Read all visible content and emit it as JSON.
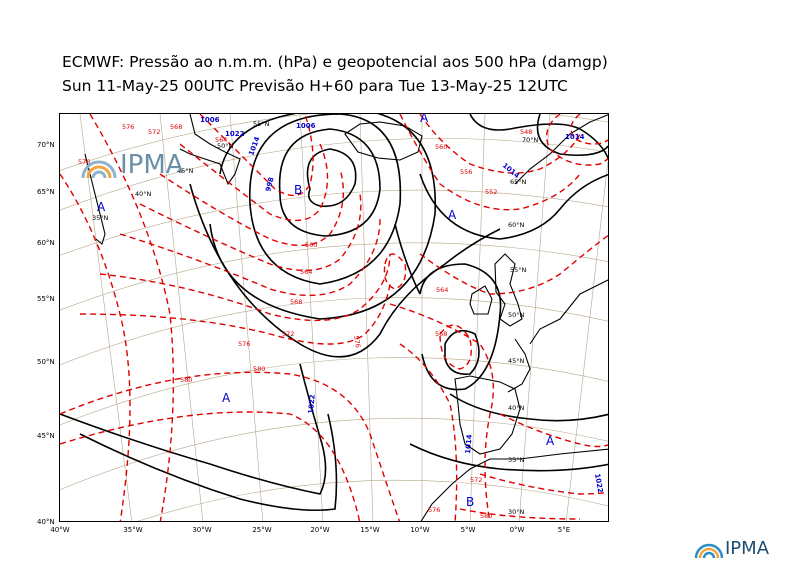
{
  "header": {
    "line1": "ECMWF:  Pressão ao n.m.m. (hPa) e geopotencial aos 500 hPa (damgp)",
    "line2": "Sun 11-May-25 00UTC Previsão H+60 para Tue 13-May-25 12UTC"
  },
  "logo": {
    "text": "IPMA"
  },
  "axes": {
    "lat_labels": [
      "70°N",
      "65°N",
      "60°N",
      "55°N",
      "50°N",
      "45°N",
      "40°N"
    ],
    "lon_labels": [
      "40°W",
      "35°W",
      "30°W",
      "25°W",
      "20°W",
      "15°W",
      "10°W",
      "5°W",
      "0°W",
      "5°E"
    ],
    "grid_labels_in_map": [
      "55°N",
      "50°N",
      "45°N",
      "40°N",
      "35°N",
      "70°N",
      "65°N",
      "60°N",
      "55°N",
      "50°N",
      "45°N",
      "40°N",
      "35°N",
      "30°N"
    ]
  },
  "pressure_centers": [
    {
      "label": "A",
      "kind": "high"
    },
    {
      "label": "B",
      "kind": "low"
    },
    {
      "label": "A",
      "kind": "high"
    },
    {
      "label": "A",
      "kind": "high"
    },
    {
      "label": "A",
      "kind": "high"
    },
    {
      "label": "A",
      "kind": "high"
    },
    {
      "label": "B",
      "kind": "low"
    }
  ],
  "isobar_labels": [
    "1006",
    "998",
    "1014",
    "1022",
    "1014",
    "1022",
    "1014",
    "1022",
    "1014",
    "1006"
  ],
  "geopotential_labels": [
    "580",
    "576",
    "572",
    "568",
    "564",
    "560",
    "576",
    "572",
    "568",
    "564",
    "560",
    "556",
    "552",
    "548",
    "576",
    "580",
    "564",
    "568",
    "572",
    "576",
    "580",
    "576"
  ],
  "colors": {
    "isobar": "#000000",
    "geopotential": "#e00000",
    "isobar_label": "#0000cc",
    "center_label": "#0000cc",
    "gridline": "#b5a68a",
    "coast": "#000000",
    "logo": "#1c4e73"
  }
}
